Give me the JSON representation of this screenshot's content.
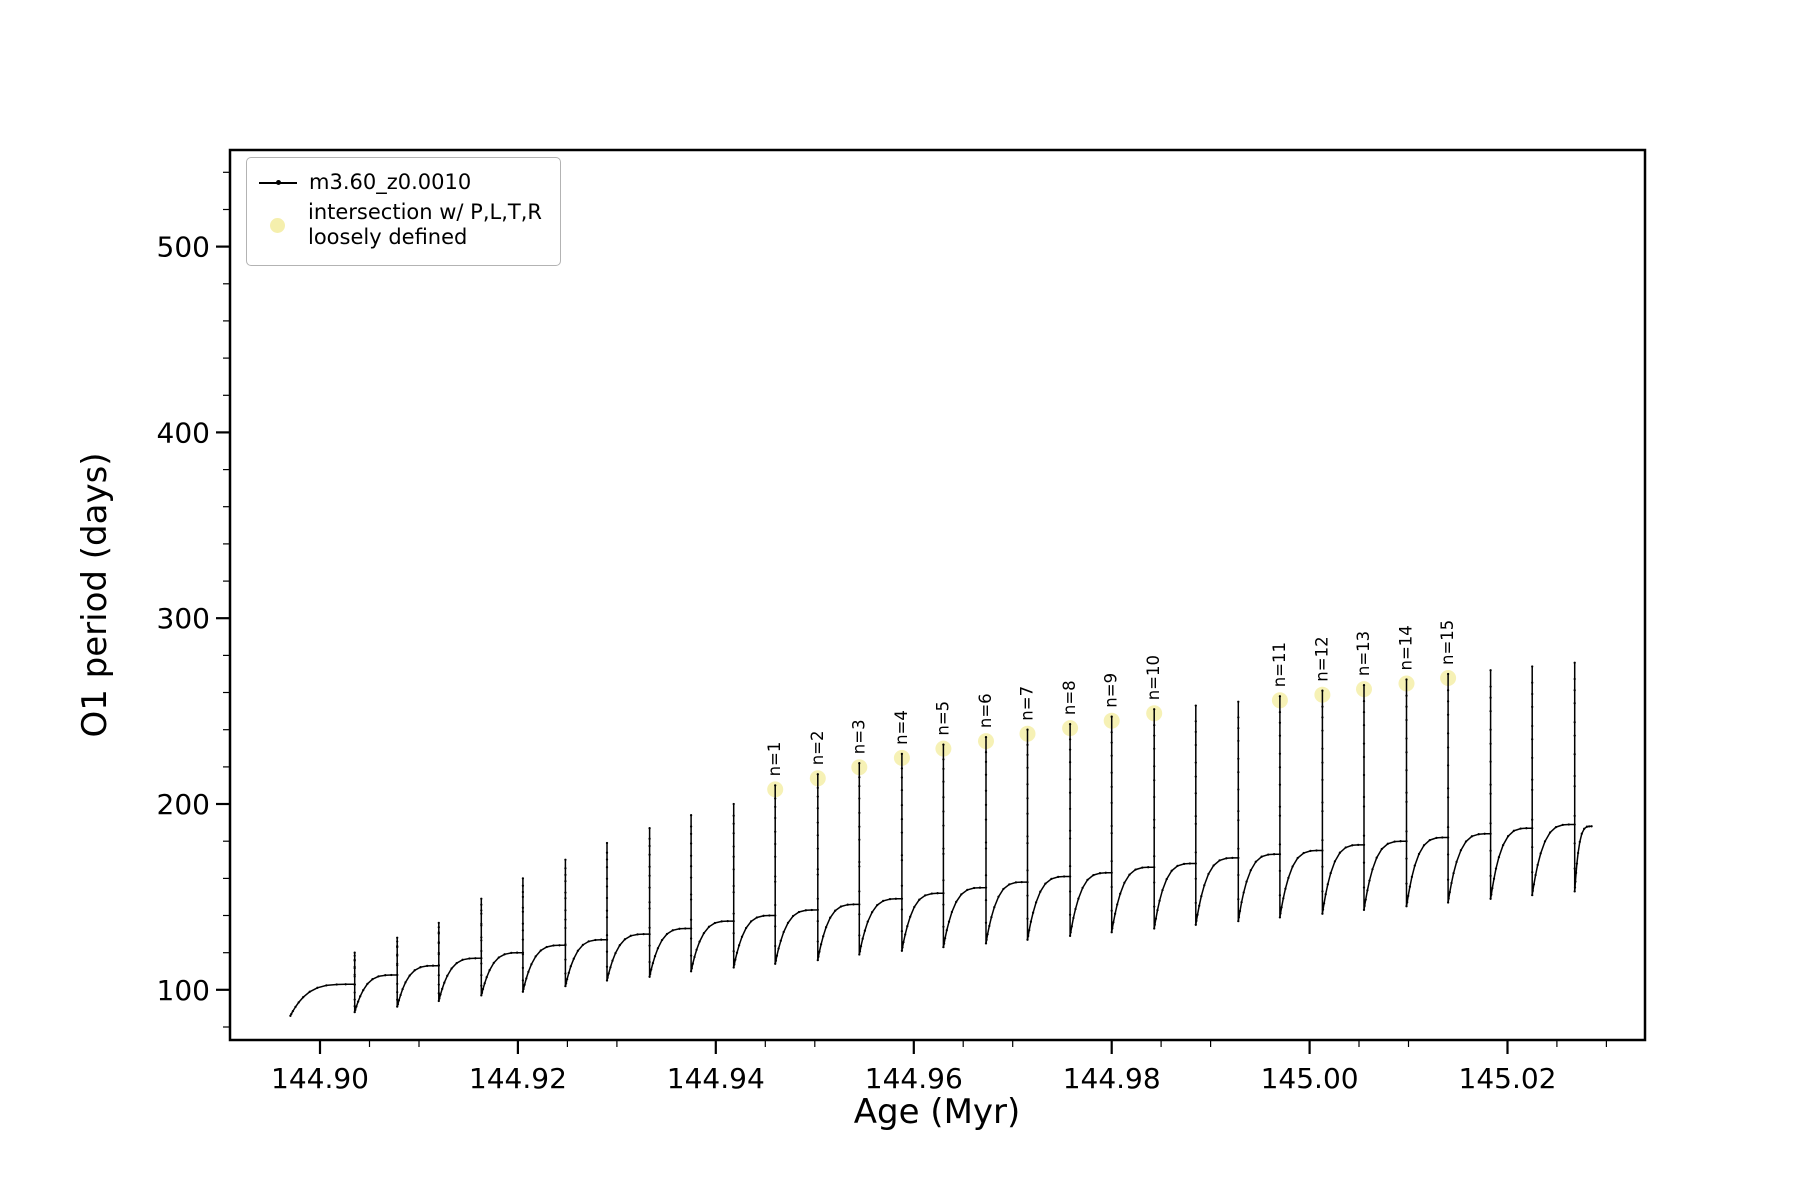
{
  "chart_data": {
    "type": "line",
    "title": "",
    "xlabel": "Age (Myr)",
    "ylabel": "O1 period (days)",
    "xlim": [
      144.8909,
      145.0339
    ],
    "ylim": [
      73,
      552
    ],
    "grid": false,
    "x_major_ticks": [
      144.9,
      144.92,
      144.94,
      144.96,
      144.98,
      145.0,
      145.02
    ],
    "x_major_labels": [
      "144.90",
      "144.92",
      "144.94",
      "144.96",
      "144.98",
      "145.00",
      "145.02"
    ],
    "x_minor_step": 0.005,
    "y_major_ticks": [
      100,
      200,
      300,
      400,
      500
    ],
    "y_major_labels": [
      "100",
      "200",
      "300",
      "400",
      "500"
    ],
    "y_minor_step": 20,
    "legend": {
      "position": "upper left",
      "entries": [
        {
          "marker": "line-dot",
          "color": "#000000",
          "label": "m3.60_z0.0010"
        },
        {
          "marker": "dot",
          "color": "#f5efad",
          "lines": [
            "intersection w/ P,L,T,R",
            "loosely defined"
          ]
        }
      ]
    },
    "series": {
      "name": "m3.60_z0.0010",
      "color": "#000000",
      "marker_size": 1.15,
      "start": {
        "x": 144.897,
        "v": 86
      },
      "end": {
        "x": 145.0285,
        "v": 188
      },
      "pulses": [
        {
          "x": 144.9035,
          "base": 103,
          "peak": 120,
          "dip": 88
        },
        {
          "x": 144.9078,
          "base": 108,
          "peak": 128,
          "dip": 91
        },
        {
          "x": 144.912,
          "base": 113,
          "peak": 136,
          "dip": 94
        },
        {
          "x": 144.9163,
          "base": 117,
          "peak": 149,
          "dip": 97
        },
        {
          "x": 144.9205,
          "base": 120,
          "peak": 160,
          "dip": 99
        },
        {
          "x": 144.9248,
          "base": 124,
          "peak": 170,
          "dip": 102
        },
        {
          "x": 144.929,
          "base": 127,
          "peak": 179,
          "dip": 105
        },
        {
          "x": 144.9333,
          "base": 130,
          "peak": 187,
          "dip": 107
        },
        {
          "x": 144.9375,
          "base": 133,
          "peak": 194,
          "dip": 110
        },
        {
          "x": 144.9418,
          "base": 137,
          "peak": 200,
          "dip": 112
        },
        {
          "x": 144.946,
          "base": 140,
          "peak": 210,
          "dip": 114,
          "label": "n=1"
        },
        {
          "x": 144.9503,
          "base": 143,
          "peak": 216,
          "dip": 116,
          "label": "n=2"
        },
        {
          "x": 144.9545,
          "base": 146,
          "peak": 222,
          "dip": 119,
          "label": "n=3"
        },
        {
          "x": 144.9588,
          "base": 149,
          "peak": 227,
          "dip": 121,
          "label": "n=4"
        },
        {
          "x": 144.963,
          "base": 152,
          "peak": 232,
          "dip": 123,
          "label": "n=5"
        },
        {
          "x": 144.9673,
          "base": 155,
          "peak": 236,
          "dip": 125,
          "label": "n=6"
        },
        {
          "x": 144.9715,
          "base": 158,
          "peak": 240,
          "dip": 127,
          "label": "n=7"
        },
        {
          "x": 144.9758,
          "base": 161,
          "peak": 243,
          "dip": 129,
          "label": "n=8"
        },
        {
          "x": 144.98,
          "base": 163,
          "peak": 247,
          "dip": 131,
          "label": "n=9"
        },
        {
          "x": 144.9843,
          "base": 166,
          "peak": 251,
          "dip": 133,
          "label": "n=10"
        },
        {
          "x": 144.9885,
          "base": 168,
          "peak": 253,
          "dip": 135
        },
        {
          "x": 144.9928,
          "base": 171,
          "peak": 255,
          "dip": 137
        },
        {
          "x": 144.997,
          "base": 173,
          "peak": 258,
          "dip": 139,
          "label": "n=11"
        },
        {
          "x": 145.0013,
          "base": 175,
          "peak": 261,
          "dip": 141,
          "label": "n=12"
        },
        {
          "x": 145.0055,
          "base": 178,
          "peak": 264,
          "dip": 143,
          "label": "n=13"
        },
        {
          "x": 145.0098,
          "base": 180,
          "peak": 267,
          "dip": 145,
          "label": "n=14"
        },
        {
          "x": 145.014,
          "base": 182,
          "peak": 270,
          "dip": 147,
          "label": "n=15"
        },
        {
          "x": 145.0183,
          "base": 184,
          "peak": 272,
          "dip": 149
        },
        {
          "x": 145.0225,
          "base": 187,
          "peak": 274,
          "dip": 151
        },
        {
          "x": 145.0268,
          "base": 189,
          "peak": 276,
          "dip": 153
        }
      ]
    },
    "intersection_marker": {
      "color": "#f5efad",
      "radius_px": 8,
      "opacity": 0.9
    }
  }
}
